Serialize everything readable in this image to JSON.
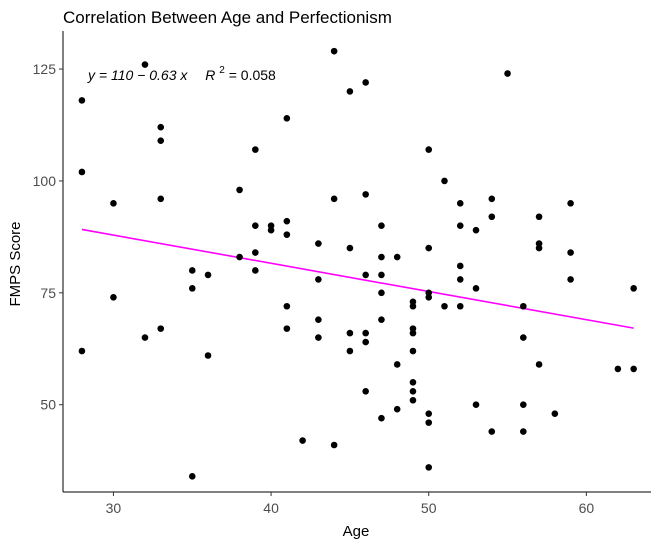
{
  "chart_data": {
    "type": "scatter",
    "title": "Correlation Between Age and Perfectionism",
    "xlabel": "Age",
    "ylabel": "FMPS Score",
    "xlim": [
      26.8,
      64.1
    ],
    "ylim": [
      30.5,
      133.5
    ],
    "xticks": [
      30,
      40,
      50,
      60
    ],
    "yticks": [
      50,
      75,
      100,
      125
    ],
    "xtick_labels": [
      "30",
      "40",
      "50",
      "60"
    ],
    "ytick_labels": [
      "50",
      "75",
      "100",
      "125"
    ],
    "grid": false,
    "equation_text": "y = 110 − 0.63 x",
    "r2_label": "R",
    "r2_sup": "2",
    "r2_value": " = 0.058",
    "regression": {
      "intercept": 106.8,
      "slope": -0.63,
      "x_range": [
        28,
        63
      ],
      "color": "#ff00ff"
    },
    "point_color": "#000000",
    "points": [
      {
        "x": 28,
        "y": 118
      },
      {
        "x": 28,
        "y": 102
      },
      {
        "x": 28,
        "y": 62
      },
      {
        "x": 30,
        "y": 95
      },
      {
        "x": 30,
        "y": 74
      },
      {
        "x": 32,
        "y": 126
      },
      {
        "x": 32,
        "y": 65
      },
      {
        "x": 33,
        "y": 112
      },
      {
        "x": 33,
        "y": 109
      },
      {
        "x": 33,
        "y": 96
      },
      {
        "x": 33,
        "y": 67
      },
      {
        "x": 35,
        "y": 80
      },
      {
        "x": 35,
        "y": 76
      },
      {
        "x": 35,
        "y": 34
      },
      {
        "x": 36,
        "y": 79
      },
      {
        "x": 36,
        "y": 61
      },
      {
        "x": 38,
        "y": 98
      },
      {
        "x": 38,
        "y": 83
      },
      {
        "x": 39,
        "y": 107
      },
      {
        "x": 39,
        "y": 90
      },
      {
        "x": 39,
        "y": 84
      },
      {
        "x": 39,
        "y": 80
      },
      {
        "x": 40,
        "y": 90
      },
      {
        "x": 40,
        "y": 89
      },
      {
        "x": 41,
        "y": 114
      },
      {
        "x": 41,
        "y": 91
      },
      {
        "x": 41,
        "y": 88
      },
      {
        "x": 41,
        "y": 72
      },
      {
        "x": 41,
        "y": 67
      },
      {
        "x": 42,
        "y": 42
      },
      {
        "x": 43,
        "y": 86
      },
      {
        "x": 43,
        "y": 78
      },
      {
        "x": 43,
        "y": 69
      },
      {
        "x": 43,
        "y": 65
      },
      {
        "x": 44,
        "y": 129
      },
      {
        "x": 44,
        "y": 96
      },
      {
        "x": 44,
        "y": 41
      },
      {
        "x": 45,
        "y": 120
      },
      {
        "x": 45,
        "y": 85
      },
      {
        "x": 45,
        "y": 66
      },
      {
        "x": 45,
        "y": 62
      },
      {
        "x": 46,
        "y": 122
      },
      {
        "x": 46,
        "y": 97
      },
      {
        "x": 46,
        "y": 79
      },
      {
        "x": 46,
        "y": 66
      },
      {
        "x": 46,
        "y": 64
      },
      {
        "x": 46,
        "y": 53
      },
      {
        "x": 47,
        "y": 90
      },
      {
        "x": 47,
        "y": 83
      },
      {
        "x": 47,
        "y": 79
      },
      {
        "x": 47,
        "y": 75
      },
      {
        "x": 47,
        "y": 69
      },
      {
        "x": 47,
        "y": 47
      },
      {
        "x": 48,
        "y": 83
      },
      {
        "x": 48,
        "y": 59
      },
      {
        "x": 48,
        "y": 49
      },
      {
        "x": 49,
        "y": 73
      },
      {
        "x": 49,
        "y": 72
      },
      {
        "x": 49,
        "y": 67
      },
      {
        "x": 49,
        "y": 66
      },
      {
        "x": 49,
        "y": 62
      },
      {
        "x": 49,
        "y": 55
      },
      {
        "x": 49,
        "y": 53
      },
      {
        "x": 49,
        "y": 51
      },
      {
        "x": 50,
        "y": 107
      },
      {
        "x": 50,
        "y": 85
      },
      {
        "x": 50,
        "y": 75
      },
      {
        "x": 50,
        "y": 74
      },
      {
        "x": 50,
        "y": 48
      },
      {
        "x": 50,
        "y": 46
      },
      {
        "x": 50,
        "y": 36
      },
      {
        "x": 51,
        "y": 100
      },
      {
        "x": 51,
        "y": 72
      },
      {
        "x": 52,
        "y": 95
      },
      {
        "x": 52,
        "y": 90
      },
      {
        "x": 52,
        "y": 81
      },
      {
        "x": 52,
        "y": 78
      },
      {
        "x": 52,
        "y": 72
      },
      {
        "x": 53,
        "y": 89
      },
      {
        "x": 53,
        "y": 76
      },
      {
        "x": 53,
        "y": 50
      },
      {
        "x": 54,
        "y": 96
      },
      {
        "x": 54,
        "y": 92
      },
      {
        "x": 54,
        "y": 44
      },
      {
        "x": 55,
        "y": 124
      },
      {
        "x": 56,
        "y": 72
      },
      {
        "x": 56,
        "y": 65
      },
      {
        "x": 56,
        "y": 50
      },
      {
        "x": 56,
        "y": 44
      },
      {
        "x": 57,
        "y": 92
      },
      {
        "x": 57,
        "y": 86
      },
      {
        "x": 57,
        "y": 85
      },
      {
        "x": 57,
        "y": 59
      },
      {
        "x": 58,
        "y": 48
      },
      {
        "x": 59,
        "y": 95
      },
      {
        "x": 59,
        "y": 84
      },
      {
        "x": 59,
        "y": 78
      },
      {
        "x": 62,
        "y": 58
      },
      {
        "x": 63,
        "y": 76
      },
      {
        "x": 63,
        "y": 58
      }
    ]
  }
}
